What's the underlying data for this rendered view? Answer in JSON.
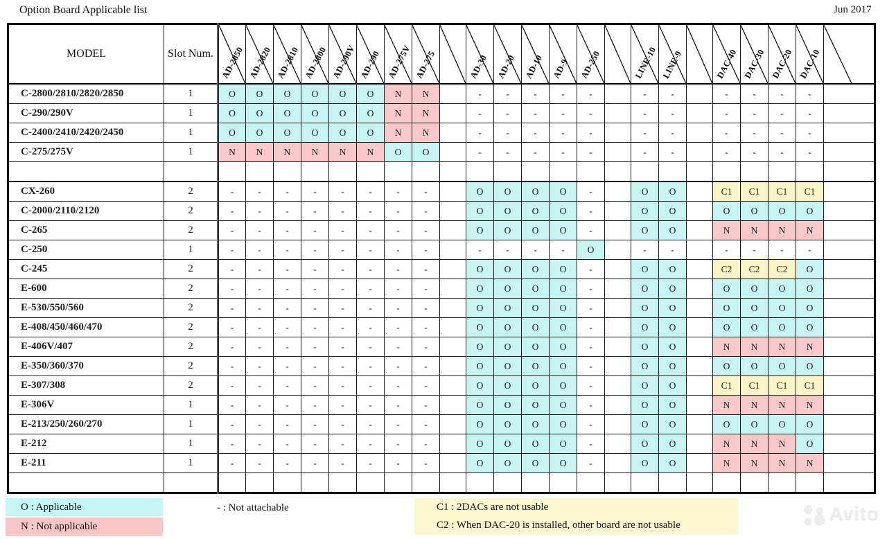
{
  "page": {
    "title": "Option Board Applicable list",
    "date": "Jun 2017"
  },
  "table": {
    "model_header": "MODEL",
    "slot_header": "Slot Num.",
    "columns": [
      "AD-2850",
      "AD-2820",
      "AD-2810",
      "AD-2800",
      "AD-290V",
      "AD-290",
      "AD-275V",
      "AD-275",
      "",
      "AD-30",
      "AD-20",
      "AD-10",
      "AD-9",
      "AD-250",
      "",
      "LINE-10",
      "LINE-9",
      "",
      "DAC-40",
      "DAC-30",
      "DAC-20",
      "DAC-10",
      ""
    ],
    "rows": [
      {
        "model": "C-2800/2810/2820/2850",
        "slot": "1",
        "cells": [
          "O",
          "O",
          "O",
          "O",
          "O",
          "O",
          "N",
          "N",
          "",
          "-",
          "-",
          "-",
          "-",
          "-",
          "",
          "-",
          "-",
          "",
          "-",
          "-",
          "-",
          "-",
          ""
        ]
      },
      {
        "model": "C-290/290V",
        "slot": "1",
        "cells": [
          "O",
          "O",
          "O",
          "O",
          "O",
          "O",
          "N",
          "N",
          "",
          "-",
          "-",
          "-",
          "-",
          "-",
          "",
          "-",
          "-",
          "",
          "-",
          "-",
          "-",
          "-",
          ""
        ]
      },
      {
        "model": "C-2400/2410/2420/2450",
        "slot": "1",
        "cells": [
          "O",
          "O",
          "O",
          "O",
          "O",
          "O",
          "N",
          "N",
          "",
          "-",
          "-",
          "-",
          "-",
          "-",
          "",
          "-",
          "-",
          "",
          "-",
          "-",
          "-",
          "-",
          ""
        ]
      },
      {
        "model": "C-275/275V",
        "slot": "1",
        "cells": [
          "N",
          "N",
          "N",
          "N",
          "N",
          "N",
          "O",
          "O",
          "",
          "-",
          "-",
          "-",
          "-",
          "-",
          "",
          "-",
          "-",
          "",
          "-",
          "-",
          "-",
          "-",
          ""
        ]
      },
      {
        "model": "",
        "slot": "",
        "cells": [
          "",
          "",
          "",
          "",
          "",
          "",
          "",
          "",
          "",
          "",
          "",
          "",
          "",
          "",
          "",
          "",
          "",
          "",
          "",
          "",
          "",
          "",
          ""
        ]
      },
      {
        "model": "CX-260",
        "slot": "2",
        "cells": [
          "-",
          "-",
          "-",
          "-",
          "-",
          "-",
          "-",
          "-",
          "",
          "O",
          "O",
          "O",
          "O",
          "-",
          "",
          "O",
          "O",
          "",
          "C1",
          "C1",
          "C1",
          "C1",
          ""
        ]
      },
      {
        "model": "C-2000/2110/2120",
        "slot": "2",
        "cells": [
          "-",
          "-",
          "-",
          "-",
          "-",
          "-",
          "-",
          "-",
          "",
          "O",
          "O",
          "O",
          "O",
          "-",
          "",
          "O",
          "O",
          "",
          "O",
          "O",
          "O",
          "O",
          ""
        ]
      },
      {
        "model": "C-265",
        "slot": "2",
        "cells": [
          "-",
          "-",
          "-",
          "-",
          "-",
          "-",
          "-",
          "-",
          "",
          "O",
          "O",
          "O",
          "O",
          "-",
          "",
          "O",
          "O",
          "",
          "N",
          "N",
          "N",
          "N",
          ""
        ]
      },
      {
        "model": "C-250",
        "slot": "1",
        "cells": [
          "-",
          "-",
          "-",
          "-",
          "-",
          "-",
          "-",
          "-",
          "",
          "-",
          "-",
          "-",
          "-",
          "O",
          "",
          "-",
          "-",
          "",
          "-",
          "-",
          "-",
          "-",
          ""
        ]
      },
      {
        "model": "C-245",
        "slot": "2",
        "cells": [
          "-",
          "-",
          "-",
          "-",
          "-",
          "-",
          "-",
          "-",
          "",
          "O",
          "O",
          "O",
          "O",
          "-",
          "",
          "O",
          "O",
          "",
          "C2",
          "C2",
          "C2",
          "O",
          ""
        ]
      },
      {
        "model": "E-600",
        "slot": "2",
        "cells": [
          "-",
          "-",
          "-",
          "-",
          "-",
          "-",
          "-",
          "-",
          "",
          "O",
          "O",
          "O",
          "O",
          "-",
          "",
          "O",
          "O",
          "",
          "O",
          "O",
          "O",
          "O",
          ""
        ]
      },
      {
        "model": "E-530/550/560",
        "slot": "2",
        "cells": [
          "-",
          "-",
          "-",
          "-",
          "-",
          "-",
          "-",
          "-",
          "",
          "O",
          "O",
          "O",
          "O",
          "-",
          "",
          "O",
          "O",
          "",
          "O",
          "O",
          "O",
          "O",
          ""
        ]
      },
      {
        "model": "E-408/450/460/470",
        "slot": "2",
        "cells": [
          "-",
          "-",
          "-",
          "-",
          "-",
          "-",
          "-",
          "-",
          "",
          "O",
          "O",
          "O",
          "O",
          "-",
          "",
          "O",
          "O",
          "",
          "O",
          "O",
          "O",
          "O",
          ""
        ]
      },
      {
        "model": "E-406V/407",
        "slot": "2",
        "cells": [
          "-",
          "-",
          "-",
          "-",
          "-",
          "-",
          "-",
          "-",
          "",
          "O",
          "O",
          "O",
          "O",
          "-",
          "",
          "O",
          "O",
          "",
          "N",
          "N",
          "N",
          "N",
          ""
        ]
      },
      {
        "model": "E-350/360/370",
        "slot": "2",
        "cells": [
          "-",
          "-",
          "-",
          "-",
          "-",
          "-",
          "-",
          "-",
          "",
          "O",
          "O",
          "O",
          "O",
          "-",
          "",
          "O",
          "O",
          "",
          "O",
          "O",
          "O",
          "O",
          ""
        ]
      },
      {
        "model": "E-307/308",
        "slot": "2",
        "cells": [
          "-",
          "-",
          "-",
          "-",
          "-",
          "-",
          "-",
          "-",
          "",
          "O",
          "O",
          "O",
          "O",
          "-",
          "",
          "O",
          "O",
          "",
          "C1",
          "C1",
          "C1",
          "C1",
          ""
        ]
      },
      {
        "model": "E-306V",
        "slot": "1",
        "cells": [
          "-",
          "-",
          "-",
          "-",
          "-",
          "-",
          "-",
          "-",
          "",
          "O",
          "O",
          "O",
          "O",
          "-",
          "",
          "O",
          "O",
          "",
          "N",
          "N",
          "N",
          "N",
          ""
        ]
      },
      {
        "model": "E-213/250/260/270",
        "slot": "1",
        "cells": [
          "-",
          "-",
          "-",
          "-",
          "-",
          "-",
          "-",
          "-",
          "",
          "O",
          "O",
          "O",
          "O",
          "-",
          "",
          "O",
          "O",
          "",
          "O",
          "O",
          "O",
          "O",
          ""
        ]
      },
      {
        "model": "E-212",
        "slot": "1",
        "cells": [
          "-",
          "-",
          "-",
          "-",
          "-",
          "-",
          "-",
          "-",
          "",
          "O",
          "O",
          "O",
          "O",
          "-",
          "",
          "O",
          "O",
          "",
          "N",
          "N",
          "N",
          "O",
          ""
        ]
      },
      {
        "model": "E-211",
        "slot": "1",
        "cells": [
          "-",
          "-",
          "-",
          "-",
          "-",
          "-",
          "-",
          "-",
          "",
          "O",
          "O",
          "O",
          "O",
          "-",
          "",
          "O",
          "O",
          "",
          "N",
          "N",
          "N",
          "N",
          ""
        ]
      },
      {
        "model": "",
        "slot": "",
        "cells": [
          "",
          "",
          "",
          "",
          "",
          "",
          "",
          "",
          "",
          "",
          "",
          "",
          "",
          "",
          "",
          "",
          "",
          "",
          "",
          "",
          "",
          "",
          ""
        ]
      }
    ]
  },
  "legend": {
    "applicable": "O : Applicable",
    "not_applicable": "N : Not applicable",
    "not_attachable": "- : Not attachable",
    "c1": "C1 : 2DACs are not usable",
    "c2": "C2 : When DAC-20 is installed, other board are not usable"
  },
  "colors": {
    "applicable_bg": "#C9F4F4",
    "not_applicable_bg": "#F9C8C8",
    "conditional_bg": "#F9F3C6"
  },
  "watermark": {
    "text": "Avito"
  }
}
